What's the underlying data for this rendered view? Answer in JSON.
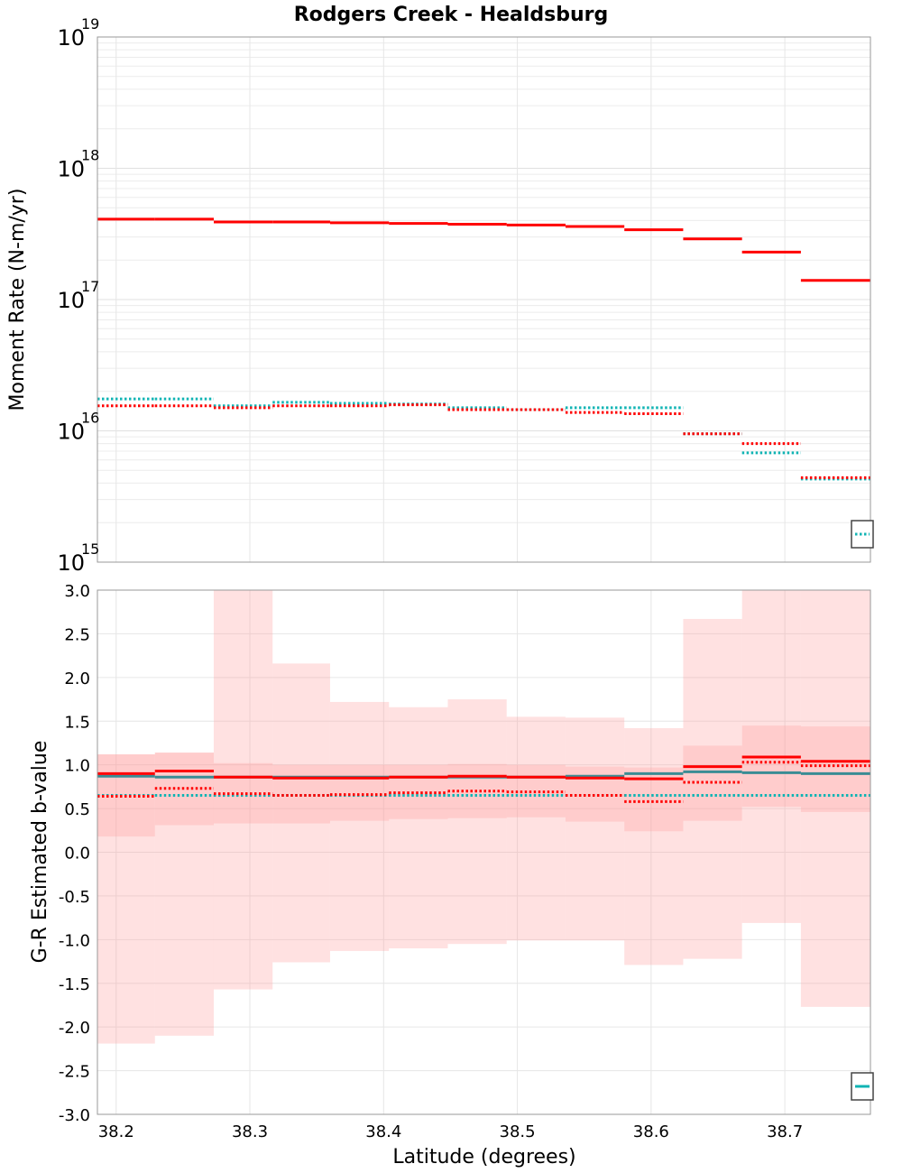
{
  "title": "Rodgers Creek - Healdsburg",
  "colors": {
    "red": "#ff0000",
    "cyan": "#10b4b4",
    "teal": "#3a8c94",
    "band": "#ff9c9c"
  },
  "chart_data": [
    {
      "type": "line",
      "style": "step",
      "yscale": "log",
      "ylabel": "Moment Rate (N-m/yr)",
      "ylim": [
        1000000000000000.0,
        1e+19
      ],
      "xlim": [
        38.186,
        38.764
      ],
      "edges": [
        38.186,
        38.229,
        38.273,
        38.317,
        38.36,
        38.404,
        38.448,
        38.492,
        38.536,
        38.58,
        38.624,
        38.668,
        38.712,
        38.764
      ],
      "y_ticks": [
        {
          "base": "10",
          "exp": "15",
          "value": 1000000000000000.0
        },
        {
          "base": "10",
          "exp": "16",
          "value": 1e+16
        },
        {
          "base": "10",
          "exp": "17",
          "value": 1e+17
        },
        {
          "base": "10",
          "exp": "18",
          "value": 1e+18
        },
        {
          "base": "10",
          "exp": "19",
          "value": 1e+19
        }
      ],
      "series": [
        {
          "color": "red",
          "line": "solid",
          "values": [
            4.1e+17,
            4.1e+17,
            3.9e+17,
            3.9e+17,
            3.85e+17,
            3.8e+17,
            3.75e+17,
            3.7e+17,
            3.6e+17,
            3.4e+17,
            2.9e+17,
            2.3e+17,
            1.4e+17
          ]
        },
        {
          "color": "cyan",
          "line": "dotted",
          "values": [
            1.75e+16,
            1.75e+16,
            1.55e+16,
            1.65e+16,
            1.62e+16,
            1.6e+16,
            1.5e+16,
            1.45e+16,
            1.5e+16,
            1.5e+16,
            9500000000000000.0,
            6800000000000000.0,
            4300000000000000.0
          ]
        },
        {
          "color": "red",
          "line": "dotted",
          "values": [
            1.55e+16,
            1.55e+16,
            1.5e+16,
            1.55e+16,
            1.55e+16,
            1.58e+16,
            1.45e+16,
            1.45e+16,
            1.38e+16,
            1.35e+16,
            9500000000000000.0,
            8000000000000000.0,
            4400000000000000.0
          ]
        }
      ]
    },
    {
      "type": "area",
      "style": "step",
      "ylabel": "G-R Estimated b-value",
      "xlabel": "Latitude (degrees)",
      "ylim": [
        -3.0,
        3.0
      ],
      "xlim": [
        38.186,
        38.764
      ],
      "edges": [
        38.186,
        38.229,
        38.273,
        38.317,
        38.36,
        38.404,
        38.448,
        38.492,
        38.536,
        38.58,
        38.624,
        38.668,
        38.712,
        38.764
      ],
      "y_ticks": [
        "3.0",
        "2.5",
        "2.0",
        "1.5",
        "1.0",
        "0.5",
        "0.0",
        "-0.5",
        "-1.0",
        "-1.5",
        "-2.0",
        "-2.5",
        "-3.0"
      ],
      "x_ticks": [
        "38.2",
        "38.3",
        "38.4",
        "38.5",
        "38.6",
        "38.7"
      ],
      "bands": [
        {
          "upper": [
            1.12,
            1.14,
            3.0,
            2.16,
            1.72,
            1.66,
            1.75,
            1.55,
            1.54,
            1.42,
            2.67,
            3.0,
            3.0
          ],
          "lower": [
            -2.19,
            -2.1,
            -1.57,
            -1.26,
            -1.13,
            -1.1,
            -1.05,
            -1.01,
            -1.01,
            -1.29,
            -1.22,
            -0.81,
            -1.77
          ]
        },
        {
          "upper": [
            1.12,
            1.14,
            1.02,
            1.0,
            1.0,
            1.0,
            1.01,
            1.0,
            0.98,
            0.97,
            1.22,
            1.45,
            1.44
          ],
          "lower": [
            0.18,
            0.31,
            0.33,
            0.33,
            0.36,
            0.38,
            0.39,
            0.4,
            0.35,
            0.24,
            0.36,
            0.52,
            0.46
          ]
        }
      ],
      "series": [
        {
          "color": "teal",
          "line": "solid",
          "values": [
            0.87,
            0.86,
            0.86,
            0.86,
            0.86,
            0.86,
            0.86,
            0.86,
            0.87,
            0.9,
            0.92,
            0.91,
            0.9
          ]
        },
        {
          "color": "cyan",
          "line": "dotted",
          "values": [
            0.65,
            0.65,
            0.65,
            0.65,
            0.65,
            0.65,
            0.65,
            0.65,
            0.65,
            0.65,
            0.65,
            0.65,
            0.65
          ]
        },
        {
          "color": "red",
          "line": "solid",
          "values": [
            0.9,
            0.93,
            0.86,
            0.85,
            0.85,
            0.86,
            0.87,
            0.86,
            0.85,
            0.84,
            0.98,
            1.09,
            1.04
          ]
        },
        {
          "color": "red",
          "line": "dotted",
          "values": [
            0.64,
            0.73,
            0.67,
            0.65,
            0.66,
            0.68,
            0.7,
            0.69,
            0.65,
            0.58,
            0.8,
            1.03,
            0.99
          ]
        }
      ]
    }
  ]
}
